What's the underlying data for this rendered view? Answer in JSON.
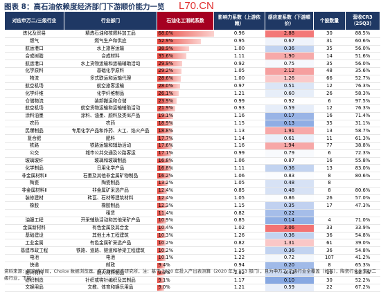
{
  "header": {
    "title": "图表 8：高石油依赖度经济部门下游顺价能力一览",
    "watermark": "L70.CN"
  },
  "table": {
    "columns": [
      "对应申万二/三级行业",
      "行业部门",
      "石油化工消耗系数",
      "影响力系数（上游依赖）",
      "感应度系数（下游顺价）",
      "个股数量",
      "营收CR3（25Q3）"
    ],
    "rows": [
      [
        "炼化及贸易",
        "精炼石油和核燃料加工品",
        "68.0%",
        "0.96",
        "2.88",
        "30",
        "88.5%"
      ],
      [
        "燃气",
        "燃气生产和供应",
        "52.9%",
        "0.95",
        "0.67",
        "31",
        "60.6%"
      ],
      [
        "航运港口",
        "水上旅客运输",
        "38.9%",
        "1.00",
        "0.36",
        "35",
        "56.0%"
      ],
      [
        "合成树脂",
        "合成材料",
        "35.6%",
        "1.11",
        "1.90",
        "14",
        "51.6%"
      ],
      [
        "航运港口",
        "水上货物运输和运输辅助活动",
        "29.9%",
        "0.92",
        "0.75",
        "35",
        "56.0%"
      ],
      [
        "化学原料",
        "基础化学原料",
        "29.2%",
        "1.05",
        "2.12",
        "48",
        "35.6%"
      ],
      [
        "物流",
        "多式联运和运输代理",
        "28.6%",
        "1.00",
        "1.26",
        "66",
        "52.7%"
      ],
      [
        "航空机场",
        "航空旅客运输",
        "28.0%",
        "0.97",
        "0.51",
        "12",
        "76.3%"
      ],
      [
        "化学纤维",
        "化学纤维制品",
        "26.1%",
        "1.21",
        "0.60",
        "26",
        "58.3%"
      ],
      [
        "仓储物流",
        "装卸搬运和仓储",
        "23.9%",
        "0.99",
        "0.92",
        "6",
        "97.5%"
      ],
      [
        "航空机场",
        "航空货物运输和运输辅助活动",
        "21.9%",
        "0.93",
        "0.59",
        "12",
        "76.3%"
      ],
      [
        "涂料油墨",
        "涂料、油墨、颜料及类似产品",
        "19.1%",
        "1.16",
        "0.17",
        "16",
        "71.4%"
      ],
      [
        "农药",
        "农药",
        "18.9%",
        "1.15",
        "0.13",
        "35",
        "31.1%"
      ],
      [
        "民爆制品",
        "专用化学产品和炸药、火工、焰火产品",
        "18.8%",
        "1.13",
        "1.91",
        "13",
        "58.7%"
      ],
      [
        "复合肥",
        "肥料",
        "17.7%",
        "1.14",
        "0.61",
        "11",
        "61.3%"
      ],
      [
        "铁路",
        "铁路运输和辅助活动",
        "17.6%",
        "1.16",
        "1.94",
        "77",
        "38.8%"
      ],
      [
        "公交",
        "城市公共交通及公路客运",
        "17.1%",
        "0.99",
        "0.79",
        "6",
        "72.3%"
      ],
      [
        "玻璃玻纤",
        "玻璃和玻璃制品",
        "16.8%",
        "1.06",
        "0.87",
        "16",
        "55.8%"
      ],
      [
        "化学制品",
        "日用化学产品",
        "16.8%",
        "1.11",
        "0.36",
        "13",
        "83.0%"
      ],
      [
        "非金属材料Ⅱ",
        "石墨及其他非金属矿物制品",
        "16.2%",
        "1.06",
        "0.83",
        "8",
        "80.6%"
      ],
      [
        "陶瓷",
        "陶瓷制品",
        "13.2%",
        "1.05",
        "0.48",
        "8",
        null
      ],
      [
        "非金属材料Ⅱ",
        "非金属矿采选产品",
        "12.4%",
        "0.85",
        "0.48",
        "8",
        "80.6%"
      ],
      [
        "装修建材",
        "砖瓦、石材等建筑材料",
        "12.4%",
        "1.05",
        "0.86",
        "26",
        "57.0%"
      ],
      [
        "橡胶",
        "橡胶制品",
        "12.3%",
        "1.15",
        "0.35",
        "17",
        "47.3%"
      ],
      [
        null,
        "租赁",
        "11.4%",
        "0.82",
        "0.22",
        null,
        null
      ],
      [
        "油服工程",
        "开采辅助活动和其他采矿产品",
        "10.9%",
        "0.85",
        "0.14",
        "4",
        "71.0%"
      ],
      [
        "金属新材料",
        "有色金属及其合金",
        "10.4%",
        "1.02",
        "3.06",
        "33",
        "33.9%"
      ],
      [
        "基础建设",
        "其他土木工程建筑",
        "10.3%",
        "1.26",
        "0.36",
        "36",
        "54.8%"
      ],
      [
        "工业金属",
        "有色金属矿采选产品",
        "10.2%",
        "0.82",
        "1.31",
        "61",
        "39.0%"
      ],
      [
        "基建市政工程",
        "铁路、道路、隧道和桥梁工程建筑",
        "10.2%",
        "1.25",
        "0.36",
        "36",
        "54.8%"
      ],
      [
        "电池",
        "电池",
        "10.1%",
        "1.22",
        "0.72",
        "107",
        "41.2%"
      ],
      [
        "快递",
        "邮政",
        "9.4%",
        "0.94",
        "0.20",
        "8",
        "65.3%"
      ],
      [
        "耐火材料",
        "耐火材料制品",
        "9.3%",
        "1.02",
        "0.43",
        "10",
        "58.7%"
      ],
      [
        "纺织制造",
        "针织或钩针编织及其制品",
        "9.1%",
        "1.17",
        "0.10",
        "30",
        "52.2%"
      ],
      [
        "文娱用品",
        "文教、体育和娱乐用品",
        "9.0%",
        "1.21",
        "0.59",
        "22",
        "67.2%"
      ]
    ]
  },
  "footnote": "资料来源：国家统计局，Choice 数据浏览器，东方财富证券研究所，注：基于 2020 年投入产出表测算（2020 年为 153 部门），且为申万二/三级行业全覆盖（如有），陶瓷行业为东财二级行业，下同"
}
